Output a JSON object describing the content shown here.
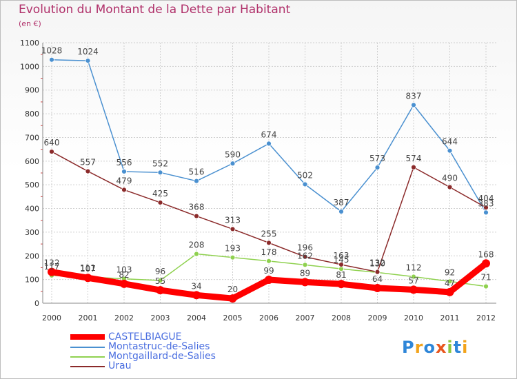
{
  "chart_data": {
    "type": "line",
    "title": "Evolution du Montant de la Dette par Habitant",
    "subtitle": "(en €)",
    "x": [
      "2000",
      "2001",
      "2002",
      "2003",
      "2004",
      "2005",
      "2006",
      "2007",
      "2008",
      "2009",
      "2010",
      "2011",
      "2012"
    ],
    "ylim": [
      0,
      1100
    ],
    "yticks": [
      0,
      100,
      200,
      300,
      400,
      500,
      600,
      700,
      800,
      900,
      1000,
      1100
    ],
    "grid": true,
    "legend_position": "bottom-left",
    "series": [
      {
        "name": "CASTELBIAGUE",
        "color": "#ff0000",
        "values": [
          132,
          107,
          82,
          55,
          34,
          20,
          99,
          89,
          81,
          64,
          57,
          47,
          168
        ]
      },
      {
        "name": "Montastruc-de-Salies",
        "color": "#4a90d0",
        "values": [
          1028,
          1024,
          556,
          552,
          516,
          590,
          674,
          502,
          387,
          573,
          837,
          644,
          383
        ]
      },
      {
        "name": "Montgaillard-de-Salies",
        "color": "#8fd14f",
        "values": [
          117,
          111,
          103,
          96,
          208,
          193,
          178,
          162,
          145,
          130,
          112,
          92,
          71
        ]
      },
      {
        "name": "Urau",
        "color": "#8b2a2a",
        "values": [
          640,
          557,
          479,
          425,
          368,
          313,
          255,
          196,
          163,
          132,
          574,
          490,
          404
        ]
      }
    ]
  },
  "header": {
    "title": "Evolution du Montant de la Dette par Habitant",
    "subtitle": "(en €)"
  },
  "logo": {
    "p": "P",
    "r": "r",
    "o": "o",
    "x": "x",
    "i1": "i",
    "t": "t",
    "i2": "i"
  }
}
